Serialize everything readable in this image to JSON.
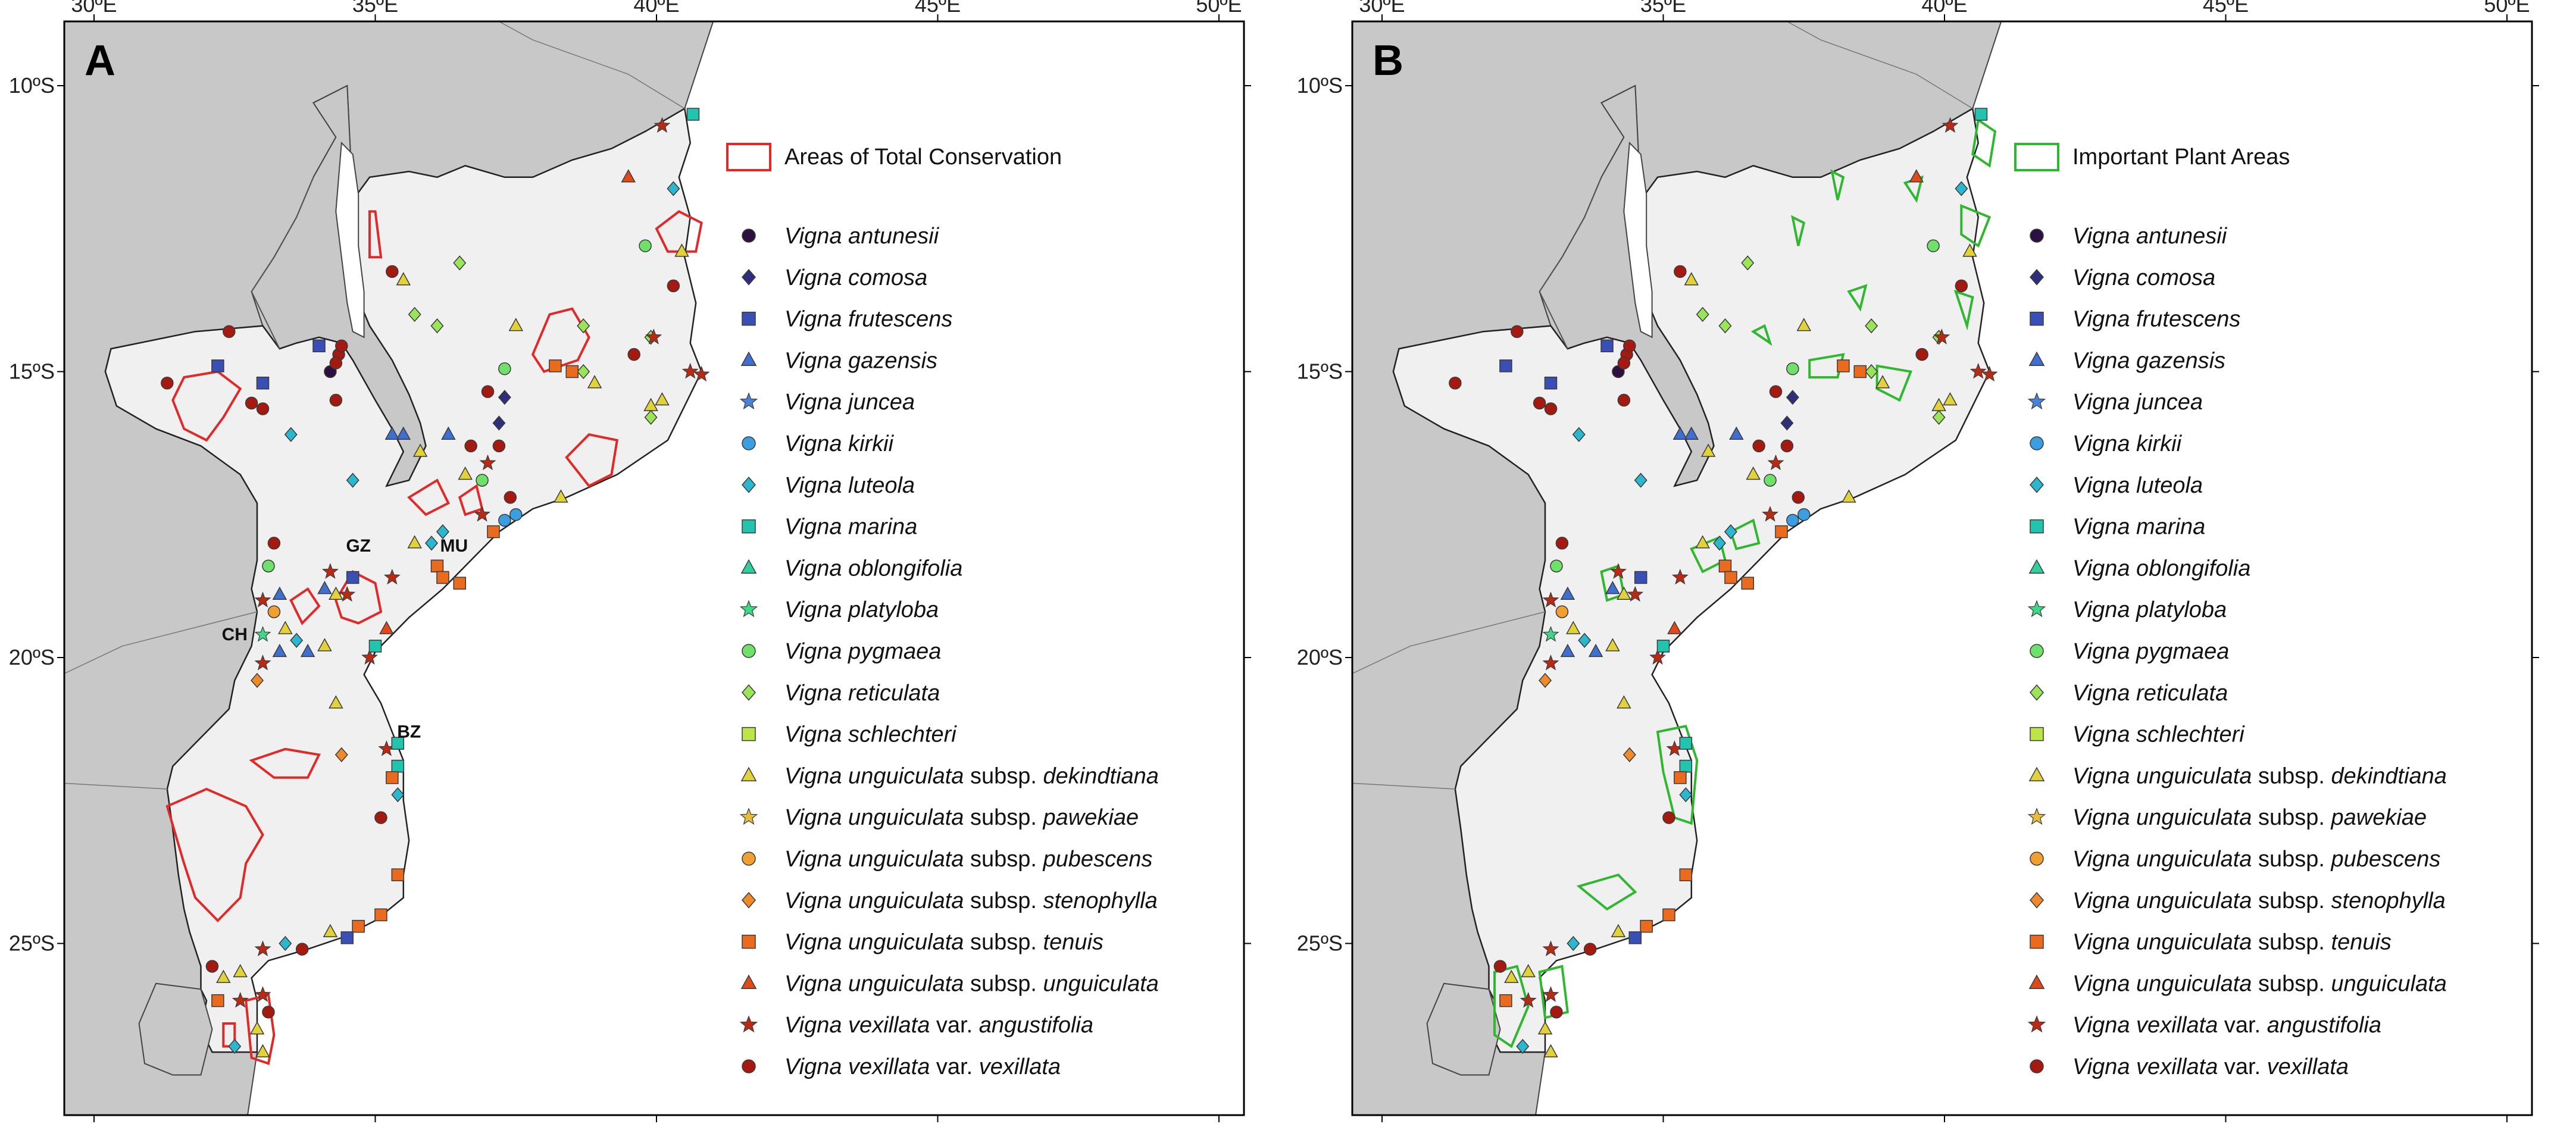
{
  "x_ticks": [
    "30ºE",
    "35ºE",
    "40ºE",
    "45ºE",
    "50ºE"
  ],
  "x_tick_values": [
    30,
    35,
    40,
    45,
    50
  ],
  "y_ticks": [
    "10ºS",
    "15ºS",
    "20ºS",
    "25ºS"
  ],
  "y_tick_values": [
    10,
    15,
    20,
    25
  ],
  "panels": [
    {
      "letter": "A",
      "area_label": "Areas of Total Conservation",
      "area_color": "#e02a2a",
      "region_labels": [
        "GZ",
        "MU",
        "CH",
        "BZ"
      ]
    },
    {
      "letter": "B",
      "area_label": "Important Plant Areas",
      "area_color": "#2fb82f"
    }
  ],
  "colors": {
    "land": "#c8c8c8",
    "mozambique": "#f0f0f0",
    "water": "#ffffff"
  },
  "legend": [
    {
      "label": "Vigna antunesii",
      "shape": "circle",
      "color": "#2b1040"
    },
    {
      "label": "Vigna comosa",
      "shape": "diamond",
      "color": "#2f2e7a"
    },
    {
      "label": "Vigna frutescens",
      "shape": "square",
      "color": "#3a4fb5"
    },
    {
      "label": "Vigna gazensis",
      "shape": "triangle",
      "color": "#3f6fd0"
    },
    {
      "label": "Vigna juncea",
      "shape": "star",
      "color": "#4a82d8"
    },
    {
      "label": "Vigna kirkii",
      "shape": "circle",
      "color": "#3a9ee0"
    },
    {
      "label": "Vigna luteola",
      "shape": "diamond",
      "color": "#2bb8cf"
    },
    {
      "label": "Vigna marina",
      "shape": "square",
      "color": "#22c4b0"
    },
    {
      "label": "Vigna oblongifolia",
      "shape": "triangle",
      "color": "#2fd0a0"
    },
    {
      "label": "Vigna platyloba",
      "shape": "star",
      "color": "#3fd888"
    },
    {
      "label": "Vigna pygmaea",
      "shape": "circle",
      "color": "#6fe06a"
    },
    {
      "label": "Vigna reticulata",
      "shape": "diamond",
      "color": "#9ae45a"
    },
    {
      "label": "Vigna schlechteri",
      "shape": "square",
      "color": "#bce548"
    },
    {
      "label": "Vigna unguiculata subsp. dekindtiana",
      "shape": "triangle",
      "color": "#e2d23a"
    },
    {
      "label": "Vigna unguiculata subsp. pawekiae",
      "shape": "star",
      "color": "#e6bc3a"
    },
    {
      "label": "Vigna unguiculata subsp. pubescens",
      "shape": "circle",
      "color": "#f0a030"
    },
    {
      "label": "Vigna unguiculata subsp. stenophylla",
      "shape": "diamond",
      "color": "#ee8a2a"
    },
    {
      "label": "Vigna unguiculata subsp. tenuis",
      "shape": "square",
      "color": "#ea6a1e"
    },
    {
      "label": "Vigna unguiculata subsp. unguiculata",
      "shape": "triangle",
      "color": "#e04a18"
    },
    {
      "label": "Vigna vexillata var. angustifolia",
      "shape": "star",
      "color": "#b82a14"
    },
    {
      "label": "Vigna vexillata var. vexillata",
      "shape": "circle",
      "color": "#a41a10"
    }
  ],
  "occurrences": [
    {
      "lon": 40.65,
      "lat": 10.5,
      "s": 7
    },
    {
      "lon": 40.1,
      "lat": 10.7,
      "s": 19
    },
    {
      "lon": 39.5,
      "lat": 11.6,
      "s": 18
    },
    {
      "lon": 40.3,
      "lat": 11.8,
      "s": 6
    },
    {
      "lon": 40.45,
      "lat": 12.9,
      "s": 13
    },
    {
      "lon": 39.8,
      "lat": 12.8,
      "s": 10
    },
    {
      "lon": 35.3,
      "lat": 13.25,
      "s": 20
    },
    {
      "lon": 35.5,
      "lat": 13.4,
      "s": 13
    },
    {
      "lon": 36.5,
      "lat": 13.1,
      "s": 11
    },
    {
      "lon": 40.3,
      "lat": 13.5,
      "s": 20
    },
    {
      "lon": 39.9,
      "lat": 14.4,
      "s": 11
    },
    {
      "lon": 35.7,
      "lat": 14.0,
      "s": 11
    },
    {
      "lon": 36.1,
      "lat": 14.2,
      "s": 11
    },
    {
      "lon": 37.5,
      "lat": 14.2,
      "s": 13
    },
    {
      "lon": 38.7,
      "lat": 14.2,
      "s": 11
    },
    {
      "lon": 39.95,
      "lat": 14.4,
      "s": 19
    },
    {
      "lon": 39.6,
      "lat": 14.7,
      "s": 20
    },
    {
      "lon": 40.6,
      "lat": 15.0,
      "s": 19
    },
    {
      "lon": 40.8,
      "lat": 15.05,
      "s": 19
    },
    {
      "lon": 37.3,
      "lat": 14.95,
      "s": 10
    },
    {
      "lon": 38.7,
      "lat": 15.0,
      "s": 11
    },
    {
      "lon": 38.9,
      "lat": 15.2,
      "s": 13
    },
    {
      "lon": 38.5,
      "lat": 15.0,
      "s": 17
    },
    {
      "lon": 38.2,
      "lat": 14.9,
      "s": 17
    },
    {
      "lon": 39.9,
      "lat": 15.6,
      "s": 13
    },
    {
      "lon": 40.1,
      "lat": 15.5,
      "s": 13
    },
    {
      "lon": 39.9,
      "lat": 15.8,
      "s": 11
    },
    {
      "lon": 37.0,
      "lat": 15.35,
      "s": 20
    },
    {
      "lon": 37.3,
      "lat": 15.45,
      "s": 1
    },
    {
      "lon": 37.2,
      "lat": 15.9,
      "s": 1
    },
    {
      "lon": 37.2,
      "lat": 16.3,
      "s": 20
    },
    {
      "lon": 37.0,
      "lat": 16.6,
      "s": 19
    },
    {
      "lon": 36.7,
      "lat": 16.3,
      "s": 20
    },
    {
      "lon": 36.6,
      "lat": 16.8,
      "s": 13
    },
    {
      "lon": 36.9,
      "lat": 16.9,
      "s": 10
    },
    {
      "lon": 37.4,
      "lat": 17.2,
      "s": 20
    },
    {
      "lon": 38.3,
      "lat": 17.2,
      "s": 13
    },
    {
      "lon": 37.5,
      "lat": 17.5,
      "s": 5
    },
    {
      "lon": 37.3,
      "lat": 17.6,
      "s": 5
    },
    {
      "lon": 37.1,
      "lat": 17.8,
      "s": 17
    },
    {
      "lon": 36.9,
      "lat": 17.5,
      "s": 19
    },
    {
      "lon": 36.2,
      "lat": 17.8,
      "s": 6
    },
    {
      "lon": 36.0,
      "lat": 18.0,
      "s": 6
    },
    {
      "lon": 35.7,
      "lat": 18.0,
      "s": 13
    },
    {
      "lon": 35.5,
      "lat": 16.1,
      "s": 3
    },
    {
      "lon": 35.3,
      "lat": 16.1,
      "s": 3
    },
    {
      "lon": 36.3,
      "lat": 16.1,
      "s": 3
    },
    {
      "lon": 35.8,
      "lat": 16.4,
      "s": 13
    },
    {
      "lon": 34.6,
      "lat": 16.9,
      "s": 6
    },
    {
      "lon": 33.5,
      "lat": 16.1,
      "s": 6
    },
    {
      "lon": 36.1,
      "lat": 18.4,
      "s": 17
    },
    {
      "lon": 36.2,
      "lat": 18.6,
      "s": 17
    },
    {
      "lon": 36.5,
      "lat": 18.7,
      "s": 17
    },
    {
      "lon": 35.3,
      "lat": 18.6,
      "s": 19
    },
    {
      "lon": 31.3,
      "lat": 15.2,
      "s": 20
    },
    {
      "lon": 32.4,
      "lat": 14.3,
      "s": 20
    },
    {
      "lon": 32.2,
      "lat": 14.9,
      "s": 2
    },
    {
      "lon": 33.0,
      "lat": 15.2,
      "s": 2
    },
    {
      "lon": 32.8,
      "lat": 15.55,
      "s": 20
    },
    {
      "lon": 33.0,
      "lat": 15.65,
      "s": 20
    },
    {
      "lon": 34.2,
      "lat": 15.0,
      "s": 0
    },
    {
      "lon": 34.0,
      "lat": 14.55,
      "s": 2
    },
    {
      "lon": 34.35,
      "lat": 14.7,
      "s": 20
    },
    {
      "lon": 34.3,
      "lat": 15.5,
      "s": 20
    },
    {
      "lon": 34.4,
      "lat": 14.55,
      "s": 20
    },
    {
      "lon": 34.3,
      "lat": 14.85,
      "s": 20
    },
    {
      "lon": 33.2,
      "lat": 18.0,
      "s": 20
    },
    {
      "lon": 33.1,
      "lat": 18.4,
      "s": 10
    },
    {
      "lon": 33.3,
      "lat": 18.9,
      "s": 3
    },
    {
      "lon": 33.0,
      "lat": 19.0,
      "s": 19
    },
    {
      "lon": 33.2,
      "lat": 19.2,
      "s": 15
    },
    {
      "lon": 33.4,
      "lat": 19.5,
      "s": 13
    },
    {
      "lon": 33.0,
      "lat": 19.6,
      "s": 9
    },
    {
      "lon": 33.3,
      "lat": 19.9,
      "s": 3
    },
    {
      "lon": 33.0,
      "lat": 20.1,
      "s": 19
    },
    {
      "lon": 32.9,
      "lat": 20.4,
      "s": 16
    },
    {
      "lon": 33.6,
      "lat": 19.7,
      "s": 6
    },
    {
      "lon": 33.8,
      "lat": 19.9,
      "s": 3
    },
    {
      "lon": 34.1,
      "lat": 19.8,
      "s": 13
    },
    {
      "lon": 34.2,
      "lat": 18.5,
      "s": 19
    },
    {
      "lon": 34.1,
      "lat": 18.8,
      "s": 3
    },
    {
      "lon": 34.3,
      "lat": 18.9,
      "s": 13
    },
    {
      "lon": 34.5,
      "lat": 18.9,
      "s": 19
    },
    {
      "lon": 34.6,
      "lat": 18.6,
      "s": 2
    },
    {
      "lon": 34.9,
      "lat": 20.0,
      "s": 19
    },
    {
      "lon": 35.0,
      "lat": 19.8,
      "s": 7
    },
    {
      "lon": 35.2,
      "lat": 19.5,
      "s": 18
    },
    {
      "lon": 34.3,
      "lat": 20.8,
      "s": 13
    },
    {
      "lon": 34.4,
      "lat": 21.7,
      "s": 16
    },
    {
      "lon": 35.2,
      "lat": 21.6,
      "s": 19
    },
    {
      "lon": 35.4,
      "lat": 21.5,
      "s": 7
    },
    {
      "lon": 35.4,
      "lat": 21.9,
      "s": 7
    },
    {
      "lon": 35.3,
      "lat": 22.1,
      "s": 17
    },
    {
      "lon": 35.4,
      "lat": 22.4,
      "s": 6
    },
    {
      "lon": 35.1,
      "lat": 22.8,
      "s": 20
    },
    {
      "lon": 35.4,
      "lat": 23.8,
      "s": 17
    },
    {
      "lon": 35.1,
      "lat": 24.5,
      "s": 17
    },
    {
      "lon": 34.7,
      "lat": 24.7,
      "s": 17
    },
    {
      "lon": 34.2,
      "lat": 24.8,
      "s": 13
    },
    {
      "lon": 34.5,
      "lat": 24.9,
      "s": 2
    },
    {
      "lon": 33.7,
      "lat": 25.1,
      "s": 20
    },
    {
      "lon": 33.4,
      "lat": 25.0,
      "s": 6
    },
    {
      "lon": 33.0,
      "lat": 25.1,
      "s": 19
    },
    {
      "lon": 32.6,
      "lat": 25.5,
      "s": 13
    },
    {
      "lon": 32.3,
      "lat": 25.6,
      "s": 13
    },
    {
      "lon": 32.1,
      "lat": 25.4,
      "s": 20
    },
    {
      "lon": 32.2,
      "lat": 26.0,
      "s": 17
    },
    {
      "lon": 32.6,
      "lat": 26.0,
      "s": 19
    },
    {
      "lon": 33.0,
      "lat": 25.9,
      "s": 19
    },
    {
      "lon": 33.1,
      "lat": 26.2,
      "s": 20
    },
    {
      "lon": 32.9,
      "lat": 26.5,
      "s": 13
    },
    {
      "lon": 32.5,
      "lat": 26.8,
      "s": 6
    },
    {
      "lon": 33.0,
      "lat": 26.9,
      "s": 13
    }
  ]
}
